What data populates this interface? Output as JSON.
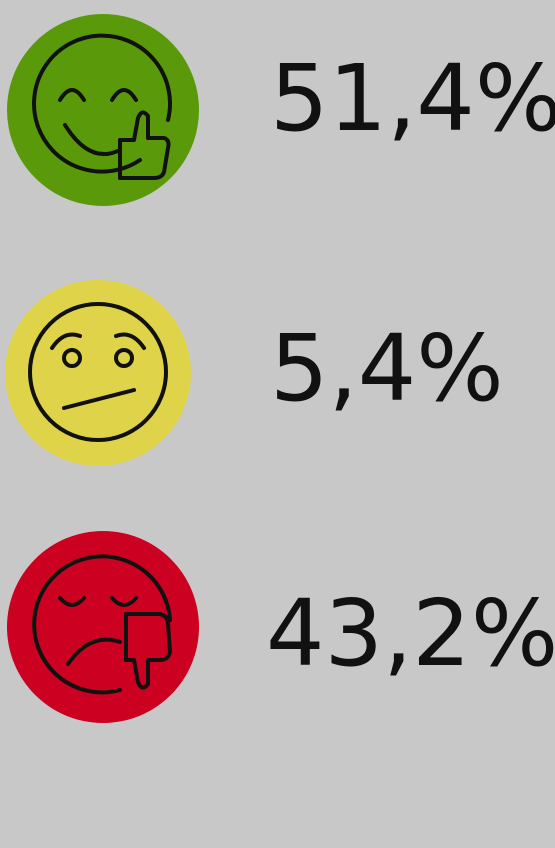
{
  "items": [
    {
      "label": "51,4%"
    },
    {
      "label": "5,4%"
    },
    {
      "label": "43,2%"
    }
  ]
}
